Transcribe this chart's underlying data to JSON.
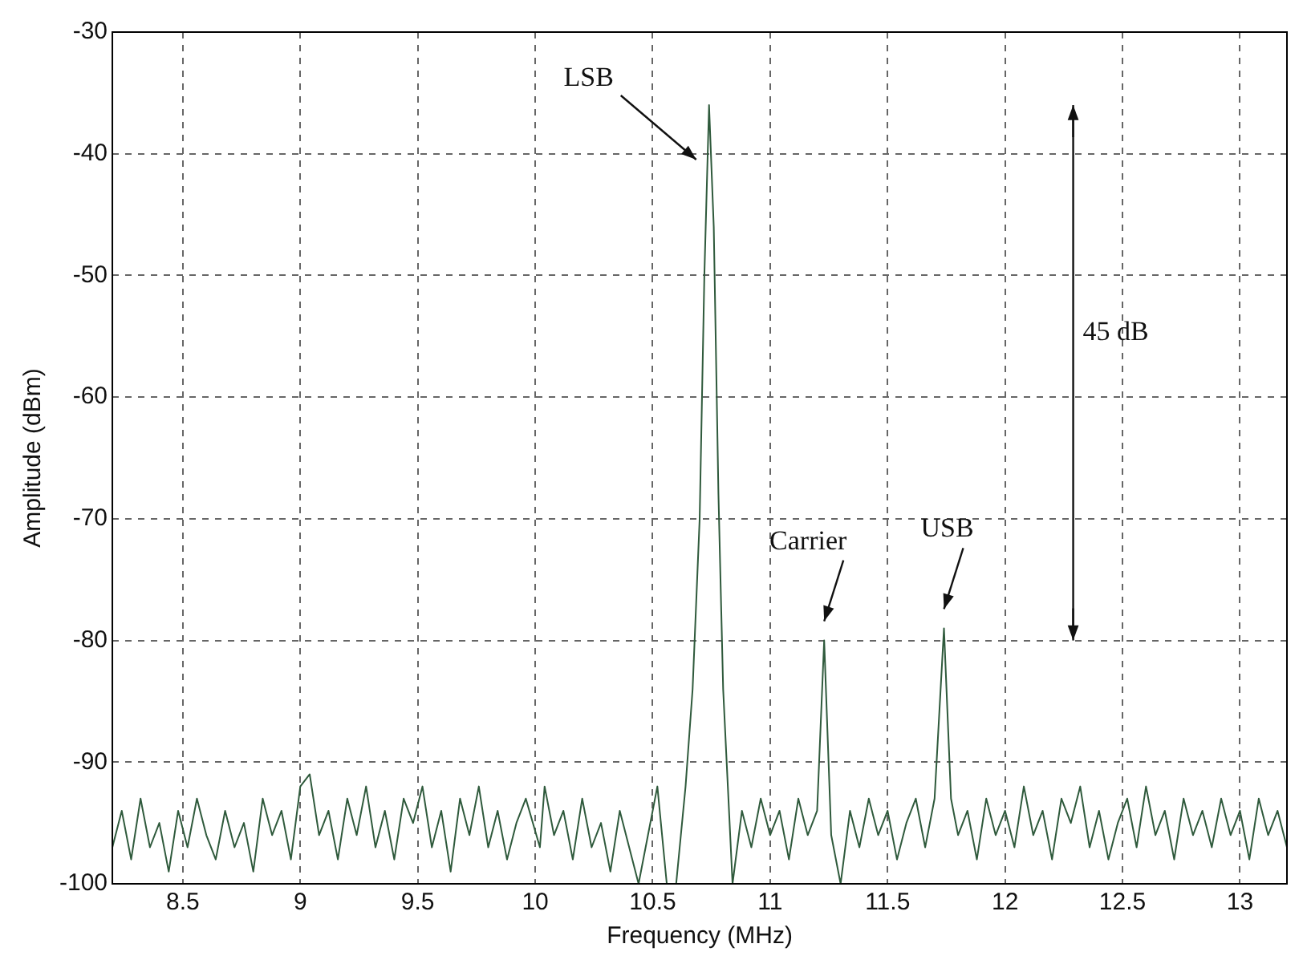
{
  "chart_data": {
    "type": "line",
    "xlabel": "Frequency (MHz)",
    "ylabel": "Amplitude (dBm)",
    "x": [
      8.2,
      8.24,
      8.28,
      8.32,
      8.36,
      8.4,
      8.44,
      8.48,
      8.52,
      8.56,
      8.6,
      8.64,
      8.68,
      8.72,
      8.76,
      8.8,
      8.84,
      8.88,
      8.92,
      8.96,
      9.0,
      9.04,
      9.08,
      9.12,
      9.16,
      9.2,
      9.24,
      9.28,
      9.32,
      9.36,
      9.4,
      9.44,
      9.48,
      9.52,
      9.56,
      9.6,
      9.64,
      9.68,
      9.72,
      9.76,
      9.8,
      9.84,
      9.88,
      9.92,
      9.96,
      10.02,
      10.04,
      10.08,
      10.12,
      10.16,
      10.2,
      10.24,
      10.28,
      10.32,
      10.36,
      10.4,
      10.44,
      10.48,
      10.52,
      10.56,
      10.6,
      10.64,
      10.67,
      10.7,
      10.72,
      10.74,
      10.76,
      10.78,
      10.8,
      10.82,
      10.84,
      10.88,
      10.92,
      10.96,
      11.0,
      11.04,
      11.08,
      11.12,
      11.16,
      11.2,
      11.23,
      11.26,
      11.3,
      11.34,
      11.38,
      11.42,
      11.46,
      11.5,
      11.54,
      11.58,
      11.62,
      11.66,
      11.7,
      11.74,
      11.77,
      11.8,
      11.84,
      11.88,
      11.92,
      11.96,
      12.0,
      12.04,
      12.08,
      12.12,
      12.16,
      12.2,
      12.24,
      12.28,
      12.32,
      12.36,
      12.4,
      12.44,
      12.48,
      12.52,
      12.56,
      12.6,
      12.64,
      12.68,
      12.72,
      12.76,
      12.8,
      12.84,
      12.88,
      12.92,
      12.96,
      13.0,
      13.04,
      13.08,
      13.12,
      13.16,
      13.2
    ],
    "series": [
      {
        "color": "#2f5a3c",
        "values": [
          -97,
          -94,
          -98,
          -93,
          -97,
          -95,
          -99,
          -94,
          -97,
          -93,
          -96,
          -98,
          -94,
          -97,
          -95,
          -99,
          -93,
          -96,
          -94,
          -98,
          -92,
          -91,
          -96,
          -94,
          -98,
          -93,
          -96,
          -92,
          -97,
          -94,
          -98,
          -93,
          -95,
          -92,
          -97,
          -94,
          -99,
          -93,
          -96,
          -92,
          -97,
          -94,
          -98,
          -95,
          -93,
          -97,
          -92,
          -96,
          -94,
          -98,
          -93,
          -97,
          -95,
          -99,
          -94,
          -97,
          -100,
          -96,
          -92,
          -100,
          -100,
          -92,
          -84,
          -70,
          -50,
          -36,
          -46,
          -68,
          -84,
          -92,
          -100,
          -94,
          -97,
          -93,
          -96,
          -94,
          -98,
          -93,
          -96,
          -94,
          -80,
          -96,
          -100,
          -94,
          -97,
          -93,
          -96,
          -94,
          -98,
          -95,
          -93,
          -97,
          -93,
          -79,
          -93,
          -96,
          -94,
          -98,
          -93,
          -96,
          -94,
          -97,
          -92,
          -96,
          -94,
          -98,
          -93,
          -95,
          -92,
          -97,
          -94,
          -98,
          -95,
          -93,
          -97,
          -92,
          -96,
          -94,
          -98,
          -93,
          -96,
          -94,
          -97,
          -93,
          -96,
          -94,
          -98,
          -93,
          -96,
          -94,
          -97
        ]
      }
    ],
    "xlim": [
      8.2,
      13.2
    ],
    "xticks": [
      8.5,
      9,
      9.5,
      10,
      10.5,
      11,
      11.5,
      12,
      12.5,
      13
    ],
    "ylim": [
      -100,
      -30
    ],
    "yticks": [
      -100,
      -90,
      -80,
      -70,
      -60,
      -50,
      -40,
      -30
    ],
    "grid": true,
    "annotations": [
      "LSB",
      "Carrier",
      "USB",
      "45 dB"
    ]
  }
}
